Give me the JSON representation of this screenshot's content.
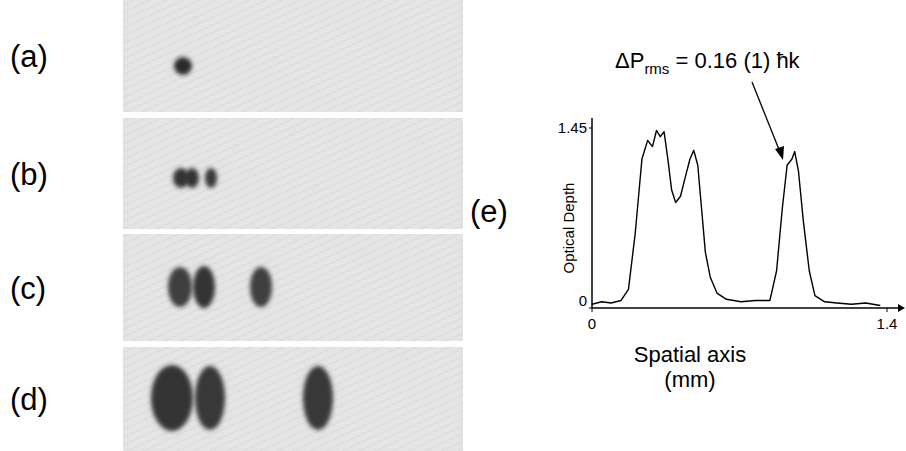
{
  "panels": [
    {
      "label": "(a)"
    },
    {
      "label": "(b)"
    },
    {
      "label": "(c)"
    },
    {
      "label": "(d)"
    }
  ],
  "chart_data": {
    "type": "line",
    "panel_label": "(e)",
    "xlabel": "Spatial axis (mm)",
    "ylabel": "Optical Depth",
    "x": [
      0,
      0.046,
      0.091,
      0.137,
      0.173,
      0.205,
      0.237,
      0.264,
      0.287,
      0.306,
      0.324,
      0.342,
      0.36,
      0.378,
      0.397,
      0.42,
      0.442,
      0.465,
      0.483,
      0.502,
      0.52,
      0.538,
      0.561,
      0.593,
      0.638,
      0.707,
      0.775,
      0.844,
      0.876,
      0.903,
      0.926,
      0.949,
      0.962,
      0.98,
      1.003,
      1.031,
      1.058,
      1.104,
      1.163,
      1.231,
      1.299,
      1.368
    ],
    "values": [
      0.03,
      0.05,
      0.04,
      0.06,
      0.15,
      0.6,
      1.2,
      1.35,
      1.3,
      1.43,
      1.38,
      1.42,
      1.2,
      0.95,
      0.85,
      0.9,
      1.05,
      1.2,
      1.27,
      1.15,
      0.8,
      0.45,
      0.25,
      0.12,
      0.07,
      0.05,
      0.06,
      0.06,
      0.3,
      0.8,
      1.15,
      1.2,
      1.26,
      1.1,
      0.7,
      0.3,
      0.1,
      0.05,
      0.04,
      0.03,
      0.04,
      0.02
    ],
    "xlim": [
      0,
      1.4
    ],
    "ylim": [
      0,
      1.45
    ],
    "xticks": [
      0,
      1.4
    ],
    "yticks": [
      0,
      1.45
    ],
    "color": "#000000",
    "annotation": {
      "text": "ΔP",
      "subscript": "rms",
      "rest": " = 0.16 (1) ħk"
    }
  }
}
